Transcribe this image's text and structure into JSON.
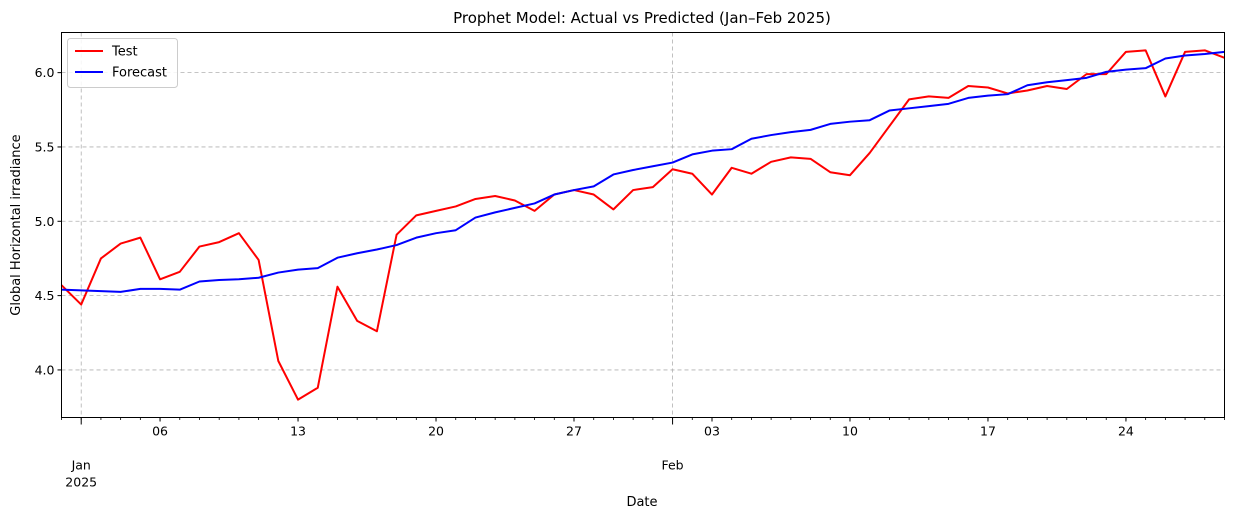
{
  "chart_data": {
    "type": "line",
    "title": "Prophet Model: Actual vs Predicted (Jan–Feb 2025)",
    "xlabel": "Date",
    "ylabel": "Global Horizontal irradiance",
    "x": [
      "2025-01-01",
      "2025-01-02",
      "2025-01-03",
      "2025-01-04",
      "2025-01-05",
      "2025-01-06",
      "2025-01-07",
      "2025-01-08",
      "2025-01-09",
      "2025-01-10",
      "2025-01-11",
      "2025-01-12",
      "2025-01-13",
      "2025-01-14",
      "2025-01-15",
      "2025-01-16",
      "2025-01-17",
      "2025-01-18",
      "2025-01-19",
      "2025-01-20",
      "2025-01-21",
      "2025-01-22",
      "2025-01-23",
      "2025-01-24",
      "2025-01-25",
      "2025-01-26",
      "2025-01-27",
      "2025-01-28",
      "2025-01-29",
      "2025-01-30",
      "2025-01-31",
      "2025-02-01",
      "2025-02-02",
      "2025-02-03",
      "2025-02-04",
      "2025-02-05",
      "2025-02-06",
      "2025-02-07",
      "2025-02-08",
      "2025-02-09",
      "2025-02-10",
      "2025-02-11",
      "2025-02-12",
      "2025-02-13",
      "2025-02-14",
      "2025-02-15",
      "2025-02-16",
      "2025-02-17",
      "2025-02-18",
      "2025-02-19",
      "2025-02-20",
      "2025-02-21",
      "2025-02-22",
      "2025-02-23",
      "2025-02-24",
      "2025-02-25",
      "2025-02-26",
      "2025-02-27",
      "2025-02-28",
      "2025-03-01"
    ],
    "series": [
      {
        "name": "Test",
        "color": "#ff0000",
        "values": [
          4.57,
          4.44,
          4.75,
          4.85,
          4.89,
          4.61,
          4.66,
          4.83,
          4.86,
          4.92,
          4.74,
          4.06,
          3.8,
          3.88,
          4.56,
          4.33,
          4.26,
          4.91,
          5.04,
          5.07,
          5.1,
          5.15,
          5.17,
          5.14,
          5.07,
          5.18,
          5.21,
          5.18,
          5.08,
          5.21,
          5.23,
          5.35,
          5.32,
          5.18,
          5.36,
          5.32,
          5.4,
          5.43,
          5.42,
          5.33,
          5.31,
          5.46,
          5.64,
          5.82,
          5.84,
          5.83,
          5.91,
          5.9,
          5.86,
          5.88,
          5.91,
          5.89,
          5.99,
          5.99,
          6.14,
          6.15,
          5.84,
          6.14,
          6.15,
          6.1
        ]
      },
      {
        "name": "Forecast",
        "color": "#0000ff",
        "values": [
          4.54,
          4.535,
          4.53,
          4.525,
          4.545,
          4.545,
          4.54,
          4.595,
          4.605,
          4.61,
          4.62,
          4.655,
          4.675,
          4.685,
          4.755,
          4.785,
          4.81,
          4.84,
          4.89,
          4.92,
          4.94,
          5.025,
          5.06,
          5.09,
          5.12,
          5.18,
          5.21,
          5.235,
          5.315,
          5.345,
          5.37,
          5.395,
          5.45,
          5.475,
          5.485,
          5.555,
          5.58,
          5.6,
          5.615,
          5.655,
          5.67,
          5.68,
          5.745,
          5.76,
          5.775,
          5.79,
          5.83,
          5.845,
          5.855,
          5.915,
          5.935,
          5.95,
          5.965,
          6.005,
          6.02,
          6.03,
          6.095,
          6.115,
          6.125,
          6.14
        ]
      }
    ],
    "yticks": [
      "4.0",
      "4.5",
      "5.0",
      "5.5",
      "6.0"
    ],
    "xticks_major": [
      "Jan",
      "Feb"
    ],
    "xtick_year": "2025",
    "xticks_minor": [
      "06",
      "13",
      "20",
      "27",
      "03",
      "10",
      "17",
      "24"
    ],
    "ylim": [
      3.68,
      6.27
    ],
    "grid": true,
    "legend_position": "upper left"
  }
}
